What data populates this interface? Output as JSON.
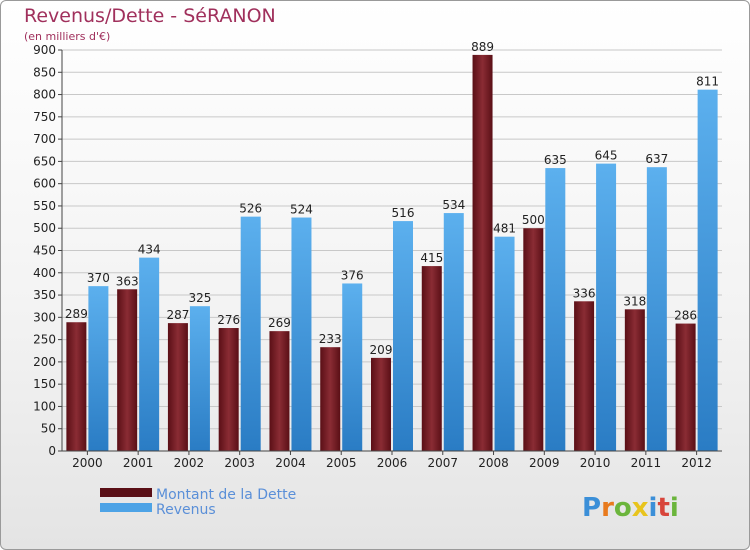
{
  "chart_data": {
    "type": "bar",
    "title": "Revenus/Dette - SéRANON",
    "subtitle": "(en milliers d'€)",
    "categories": [
      "2000",
      "2001",
      "2002",
      "2003",
      "2004",
      "2005",
      "2006",
      "2007",
      "2008",
      "2009",
      "2010",
      "2011",
      "2012"
    ],
    "series": [
      {
        "name": "Montant de la Dette",
        "color": "#7a1f27",
        "values": [
          289,
          363,
          287,
          276,
          269,
          233,
          209,
          415,
          889,
          500,
          336,
          318,
          286
        ]
      },
      {
        "name": "Revenus",
        "color": "#4da3e6",
        "values": [
          370,
          434,
          325,
          526,
          524,
          376,
          516,
          534,
          481,
          635,
          645,
          637,
          811
        ]
      }
    ],
    "ylim": [
      0,
      900
    ],
    "ytick_step": 50,
    "grid": true,
    "legend_position": "bottom-left"
  },
  "logo": {
    "text": "Proxiti"
  }
}
